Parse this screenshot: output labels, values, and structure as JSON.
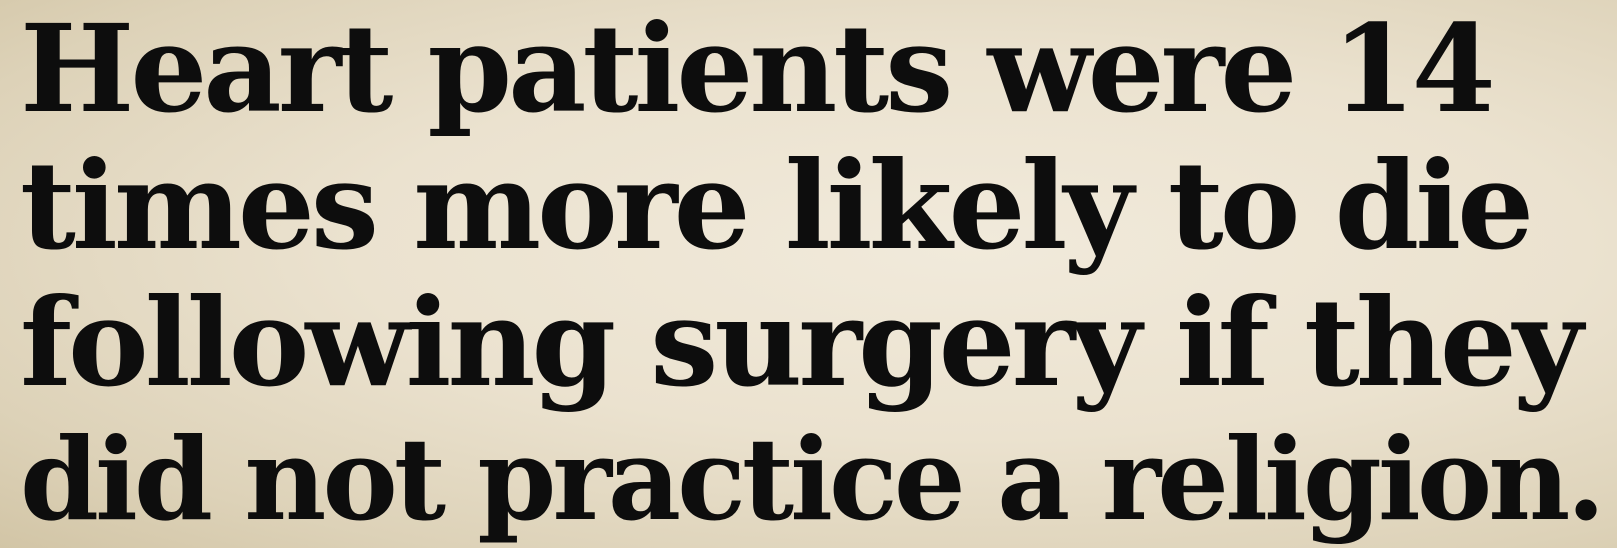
{
  "slide": {
    "lines": [
      "Heart patients were 14",
      "times more likely to die",
      "following surgery if they",
      "did not practice a religion."
    ]
  },
  "colors": {
    "text": "#0d0d0d",
    "background": "#ebe2cf"
  }
}
